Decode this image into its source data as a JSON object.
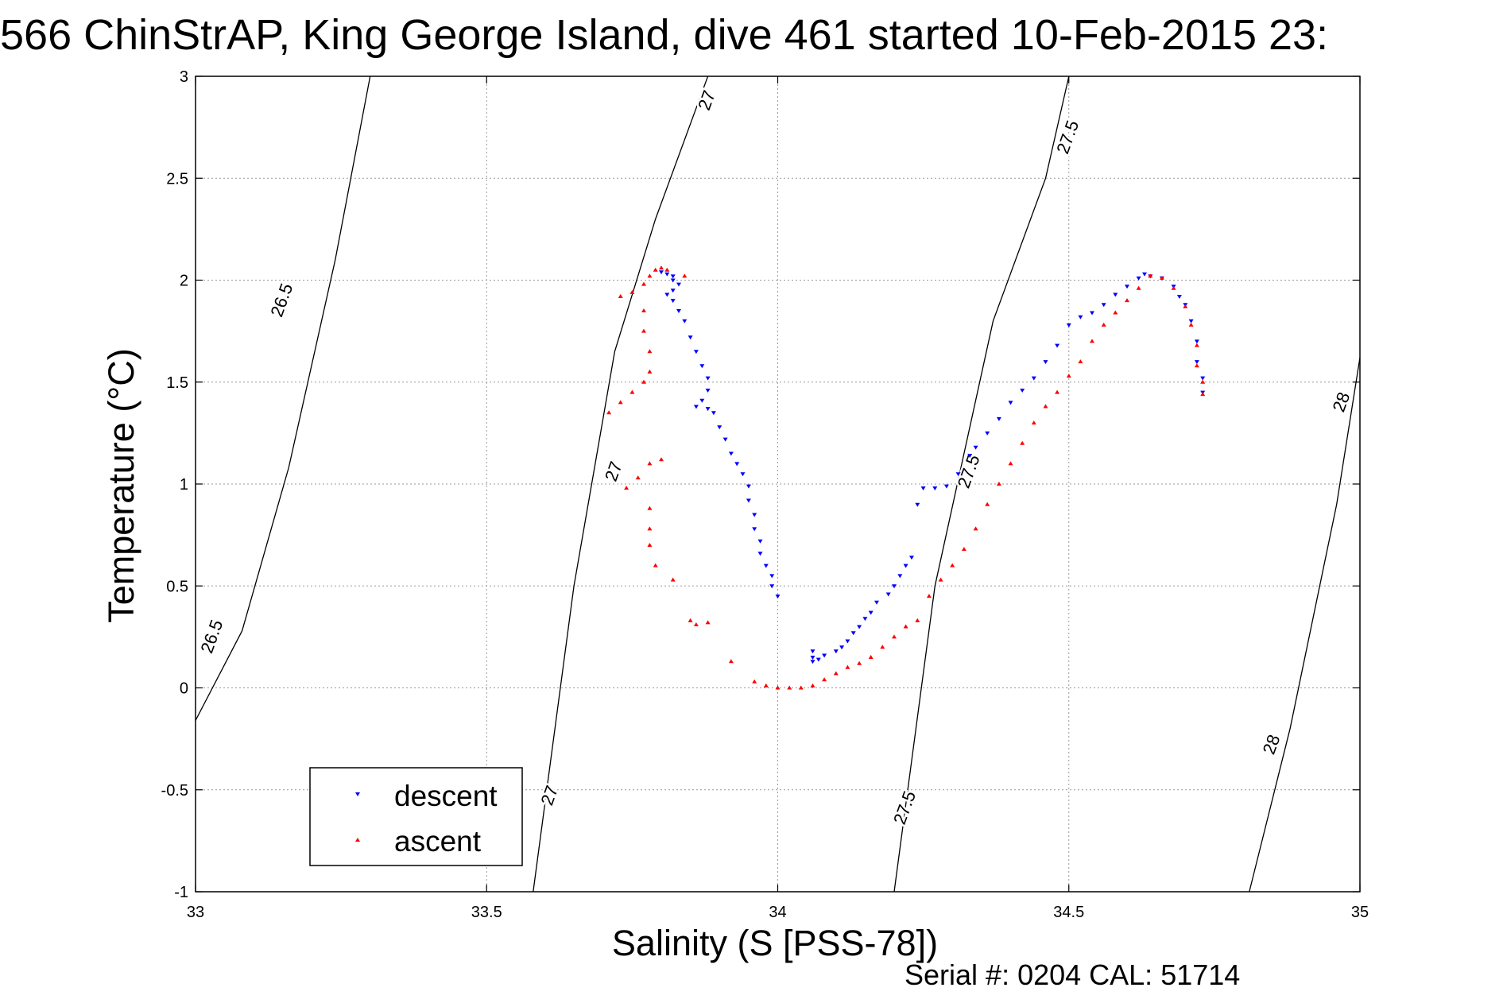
{
  "chart_data": {
    "type": "scatter",
    "title": "566 ChinStrAP, King George Island, dive 461 started 10-Feb-2015 23:",
    "xlabel": "Salinity (S [PSS-78])",
    "ylabel": "Temperature (°C)",
    "xlim": [
      33,
      35
    ],
    "ylim": [
      -1,
      3
    ],
    "x_ticks": [
      "33",
      "33.5",
      "34",
      "34.5",
      "35"
    ],
    "y_ticks": [
      "-1",
      "-0.5",
      "0",
      "0.5",
      "1",
      "1.5",
      "2",
      "2.5",
      "3"
    ],
    "grid": true,
    "legend_position": "bottom-left",
    "footer": "Serial #: 0204  CAL: 51714",
    "series": [
      {
        "name": "descent",
        "marker": "triangle-down",
        "color": "#0000ff",
        "points": [
          [
            33.8,
            2.04
          ],
          [
            33.81,
            2.03
          ],
          [
            33.82,
            2.02
          ],
          [
            33.82,
            2.0
          ],
          [
            33.83,
            1.98
          ],
          [
            33.82,
            1.95
          ],
          [
            33.81,
            1.93
          ],
          [
            33.82,
            1.9
          ],
          [
            33.83,
            1.85
          ],
          [
            33.84,
            1.8
          ],
          [
            33.85,
            1.72
          ],
          [
            33.86,
            1.65
          ],
          [
            33.87,
            1.58
          ],
          [
            33.88,
            1.52
          ],
          [
            33.88,
            1.46
          ],
          [
            33.87,
            1.41
          ],
          [
            33.86,
            1.38
          ],
          [
            33.88,
            1.37
          ],
          [
            33.89,
            1.35
          ],
          [
            33.9,
            1.28
          ],
          [
            33.91,
            1.22
          ],
          [
            33.92,
            1.15
          ],
          [
            33.93,
            1.1
          ],
          [
            33.94,
            1.05
          ],
          [
            33.95,
            0.99
          ],
          [
            33.95,
            0.92
          ],
          [
            33.96,
            0.85
          ],
          [
            33.96,
            0.78
          ],
          [
            33.97,
            0.72
          ],
          [
            33.97,
            0.66
          ],
          [
            33.98,
            0.6
          ],
          [
            33.99,
            0.55
          ],
          [
            33.99,
            0.5
          ],
          [
            34.0,
            0.45
          ],
          [
            34.06,
            0.18
          ],
          [
            34.06,
            0.15
          ],
          [
            34.06,
            0.13
          ],
          [
            34.07,
            0.14
          ],
          [
            34.08,
            0.16
          ],
          [
            34.1,
            0.18
          ],
          [
            34.11,
            0.2
          ],
          [
            34.12,
            0.23
          ],
          [
            34.13,
            0.27
          ],
          [
            34.14,
            0.3
          ],
          [
            34.15,
            0.34
          ],
          [
            34.16,
            0.37
          ],
          [
            34.17,
            0.42
          ],
          [
            34.19,
            0.46
          ],
          [
            34.2,
            0.5
          ],
          [
            34.21,
            0.55
          ],
          [
            34.22,
            0.6
          ],
          [
            34.23,
            0.64
          ],
          [
            34.24,
            0.9
          ],
          [
            34.25,
            0.98
          ],
          [
            34.27,
            0.98
          ],
          [
            34.29,
            0.99
          ],
          [
            34.31,
            1.05
          ],
          [
            34.33,
            1.14
          ],
          [
            34.34,
            1.18
          ],
          [
            34.36,
            1.25
          ],
          [
            34.38,
            1.32
          ],
          [
            34.4,
            1.4
          ],
          [
            34.42,
            1.46
          ],
          [
            34.44,
            1.52
          ],
          [
            34.46,
            1.6
          ],
          [
            34.48,
            1.68
          ],
          [
            34.5,
            1.78
          ],
          [
            34.52,
            1.82
          ],
          [
            34.54,
            1.84
          ],
          [
            34.56,
            1.88
          ],
          [
            34.58,
            1.93
          ],
          [
            34.6,
            1.97
          ],
          [
            34.62,
            2.01
          ],
          [
            34.63,
            2.03
          ],
          [
            34.64,
            2.02
          ],
          [
            34.66,
            2.01
          ],
          [
            34.68,
            1.97
          ],
          [
            34.69,
            1.92
          ],
          [
            34.7,
            1.88
          ],
          [
            34.71,
            1.8
          ],
          [
            34.72,
            1.7
          ],
          [
            34.72,
            1.6
          ],
          [
            34.73,
            1.52
          ],
          [
            34.73,
            1.45
          ]
        ]
      },
      {
        "name": "ascent",
        "marker": "triangle-up",
        "color": "#ff0000",
        "points": [
          [
            33.73,
            1.92
          ],
          [
            33.75,
            1.94
          ],
          [
            33.77,
            1.98
          ],
          [
            33.78,
            2.02
          ],
          [
            33.79,
            2.05
          ],
          [
            33.8,
            2.06
          ],
          [
            33.81,
            2.05
          ],
          [
            33.84,
            2.02
          ],
          [
            33.77,
            1.85
          ],
          [
            33.77,
            1.75
          ],
          [
            33.78,
            1.65
          ],
          [
            33.78,
            1.55
          ],
          [
            33.77,
            1.5
          ],
          [
            33.75,
            1.45
          ],
          [
            33.73,
            1.4
          ],
          [
            33.71,
            1.35
          ],
          [
            33.74,
            0.98
          ],
          [
            33.76,
            1.03
          ],
          [
            33.78,
            1.1
          ],
          [
            33.8,
            1.12
          ],
          [
            33.78,
            0.88
          ],
          [
            33.78,
            0.78
          ],
          [
            33.78,
            0.7
          ],
          [
            33.79,
            0.6
          ],
          [
            33.82,
            0.53
          ],
          [
            33.85,
            0.33
          ],
          [
            33.86,
            0.31
          ],
          [
            33.88,
            0.32
          ],
          [
            33.92,
            0.13
          ],
          [
            33.96,
            0.03
          ],
          [
            33.98,
            0.01
          ],
          [
            34.0,
            0.0
          ],
          [
            34.02,
            0.0
          ],
          [
            34.04,
            0.0
          ],
          [
            34.06,
            0.01
          ],
          [
            34.08,
            0.04
          ],
          [
            34.1,
            0.07
          ],
          [
            34.12,
            0.1
          ],
          [
            34.14,
            0.12
          ],
          [
            34.16,
            0.15
          ],
          [
            34.18,
            0.2
          ],
          [
            34.2,
            0.25
          ],
          [
            34.22,
            0.3
          ],
          [
            34.24,
            0.33
          ],
          [
            34.26,
            0.45
          ],
          [
            34.28,
            0.53
          ],
          [
            34.3,
            0.6
          ],
          [
            34.32,
            0.68
          ],
          [
            34.34,
            0.78
          ],
          [
            34.36,
            0.9
          ],
          [
            34.38,
            1.0
          ],
          [
            34.4,
            1.1
          ],
          [
            34.42,
            1.2
          ],
          [
            34.44,
            1.3
          ],
          [
            34.46,
            1.38
          ],
          [
            34.48,
            1.45
          ],
          [
            34.5,
            1.53
          ],
          [
            34.52,
            1.6
          ],
          [
            34.54,
            1.7
          ],
          [
            34.56,
            1.78
          ],
          [
            34.58,
            1.84
          ],
          [
            34.6,
            1.9
          ],
          [
            34.62,
            1.96
          ],
          [
            34.64,
            2.02
          ],
          [
            34.66,
            2.01
          ],
          [
            34.68,
            1.96
          ],
          [
            34.7,
            1.87
          ],
          [
            34.71,
            1.78
          ],
          [
            34.72,
            1.68
          ],
          [
            34.72,
            1.58
          ],
          [
            34.73,
            1.5
          ],
          [
            34.73,
            1.44
          ]
        ]
      }
    ],
    "contours": [
      {
        "label": "26.5",
        "points": [
          [
            33.0,
            -0.16
          ],
          [
            33.08,
            0.28
          ],
          [
            33.16,
            1.08
          ],
          [
            33.24,
            2.1
          ],
          [
            33.3,
            3.0
          ]
        ]
      },
      {
        "label": "27",
        "points": [
          [
            33.58,
            -1.0
          ],
          [
            33.65,
            0.5
          ],
          [
            33.72,
            1.65
          ],
          [
            33.79,
            2.3
          ],
          [
            33.88,
            3.0
          ]
        ]
      },
      {
        "label": "27.5",
        "points": [
          [
            34.2,
            -1.0
          ],
          [
            34.27,
            0.5
          ],
          [
            34.37,
            1.8
          ],
          [
            34.46,
            2.5
          ],
          [
            34.5,
            3.0
          ]
        ]
      },
      {
        "label": "28",
        "points": [
          [
            34.81,
            -1.0
          ],
          [
            34.88,
            -0.2
          ],
          [
            34.96,
            0.9
          ],
          [
            35.0,
            1.62
          ]
        ]
      }
    ],
    "contour_label_anchors": [
      {
        "text": "26.5",
        "x": 33.15,
        "y": 1.9
      },
      {
        "text": "26.5",
        "x": 33.03,
        "y": 0.25
      },
      {
        "text": "27",
        "x": 33.88,
        "y": 2.88
      },
      {
        "text": "27",
        "x": 33.72,
        "y": 1.06
      },
      {
        "text": "27",
        "x": 33.61,
        "y": -0.53
      },
      {
        "text": "27.5",
        "x": 34.5,
        "y": 2.7
      },
      {
        "text": "27.5",
        "x": 34.33,
        "y": 1.06
      },
      {
        "text": "27.5",
        "x": 34.22,
        "y": -0.59
      },
      {
        "text": "28",
        "x": 34.97,
        "y": 1.4
      },
      {
        "text": "28",
        "x": 34.85,
        "y": -0.28
      }
    ]
  }
}
